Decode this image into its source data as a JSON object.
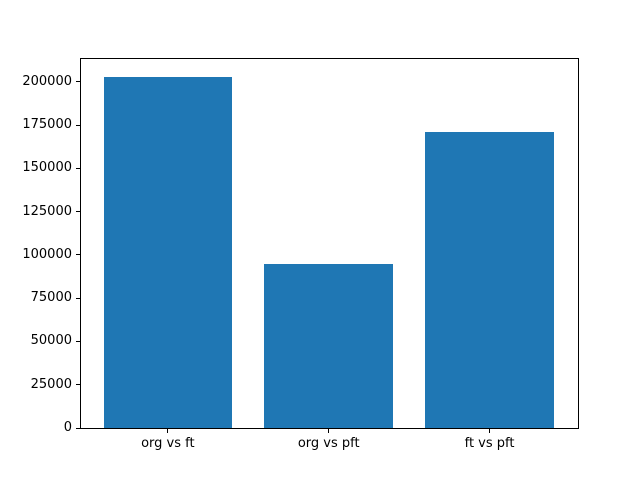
{
  "chart_data": {
    "type": "bar",
    "title": "",
    "xlabel": "",
    "ylabel": "",
    "categories": [
      "org vs ft",
      "org vs pft",
      "ft vs pft"
    ],
    "values": [
      203000,
      94700,
      171300
    ],
    "yticks": [
      0,
      25000,
      50000,
      75000,
      100000,
      125000,
      150000,
      175000,
      200000
    ],
    "ytick_labels": [
      "0",
      "25000",
      "50000",
      "75000",
      "100000",
      "125000",
      "150000",
      "175000",
      "200000"
    ],
    "ylim": [
      0,
      213255
    ],
    "xlim_units": [
      -0.54,
      2.55
    ],
    "bar_width_units": 0.8,
    "bar_color": "#1f77b4",
    "spine_color": "#000000",
    "background_color": "#ffffff",
    "grid": false,
    "legend": false
  }
}
